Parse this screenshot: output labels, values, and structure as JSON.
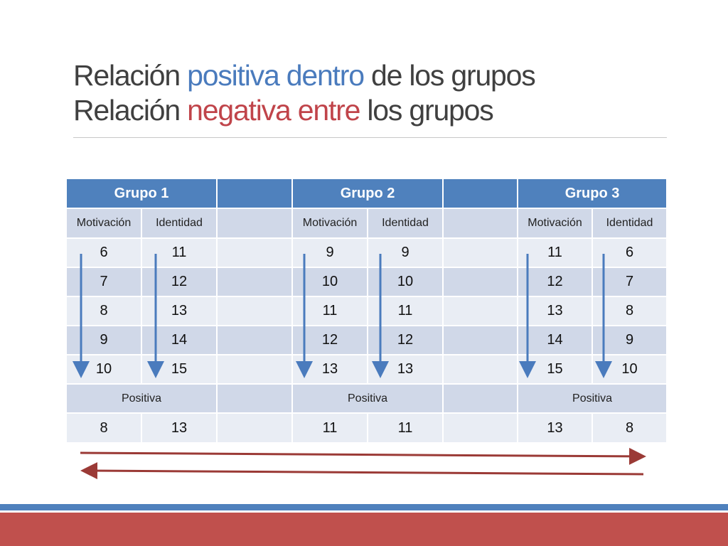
{
  "title": {
    "line1": {
      "a": "Relación ",
      "b": "positiva dentro",
      "c": " de los grupos"
    },
    "line2": {
      "a": "Relación ",
      "b": "negativa entre",
      "c": " los grupos"
    }
  },
  "table": {
    "groups": [
      "Grupo 1",
      "Grupo 2",
      "Grupo 3"
    ],
    "subheaders": {
      "motivacion": "Motivación",
      "identidad": "Identidad"
    },
    "rows": [
      [
        "6",
        "11",
        "9",
        "9",
        "11",
        "6"
      ],
      [
        "7",
        "12",
        "10",
        "10",
        "12",
        "7"
      ],
      [
        "8",
        "13",
        "11",
        "11",
        "13",
        "8"
      ],
      [
        "9",
        "14",
        "12",
        "12",
        "14",
        "9"
      ],
      [
        "10",
        "15",
        "13",
        "13",
        "15",
        "10"
      ]
    ],
    "relation_label": "Positiva",
    "summary": [
      "8",
      "13",
      "11",
      "11",
      "13",
      "8"
    ]
  },
  "colors": {
    "title_text": "#404040",
    "positive_highlight": "#4a7bbd",
    "negative_highlight": "#c0444a",
    "header_fill": "#4f81bd",
    "row_dark": "#d0d8e8",
    "row_light": "#e9edf4",
    "down_arrow": "#4a7bbd",
    "horizontal_arrow": "#9b3a36",
    "footer_blue": "#4f81bd",
    "footer_red": "#c0504d"
  }
}
